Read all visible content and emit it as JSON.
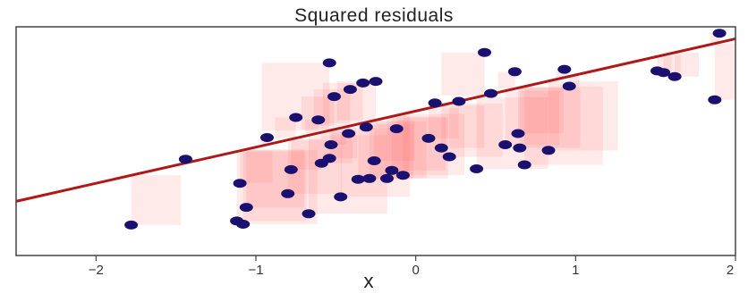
{
  "chart_data": {
    "type": "scatter",
    "title": "Squared residuals",
    "xlabel": "x",
    "ylabel": "",
    "xlim": [
      -2.5,
      2
    ],
    "ylim": [
      -1.45,
      1.4
    ],
    "xticks": [
      -2,
      -1,
      0,
      1,
      2
    ],
    "tick_labels": [
      "−2",
      "−1",
      "0",
      "1",
      "2"
    ],
    "grid": false,
    "fit_line": {
      "intercept": 0.35,
      "slope": 0.45,
      "color": "#b01818"
    },
    "point_color": "#1a1070",
    "square_color": "#ff6b6b",
    "x": [
      -1.78,
      -1.44,
      -1.1,
      -1.12,
      -1.08,
      -1.06,
      -0.93,
      -0.8,
      -0.78,
      -0.75,
      -0.67,
      -0.61,
      -0.59,
      -0.54,
      -0.54,
      -0.53,
      -0.51,
      -0.47,
      -0.42,
      -0.41,
      -0.36,
      -0.33,
      -0.31,
      -0.29,
      -0.26,
      -0.25,
      -0.18,
      -0.15,
      -0.12,
      -0.08,
      0.08,
      0.12,
      0.16,
      0.21,
      0.27,
      0.38,
      0.43,
      0.47,
      0.56,
      0.62,
      0.64,
      0.65,
      0.68,
      0.83,
      0.93,
      0.96,
      1.51,
      1.55,
      1.62,
      1.87,
      1.9
    ],
    "y": [
      -1.07,
      -0.25,
      -0.55,
      -1.02,
      -1.06,
      -0.85,
      0.02,
      -0.68,
      -0.38,
      0.27,
      -0.93,
      0.24,
      -0.3,
      0.95,
      -0.24,
      -0.07,
      0.53,
      -0.72,
      0.07,
      0.62,
      -0.5,
      0.7,
      0.15,
      -0.49,
      -0.27,
      0.72,
      -0.49,
      -0.39,
      0.13,
      -0.45,
      0.01,
      0.45,
      -0.11,
      -0.22,
      0.47,
      -0.37,
      1.08,
      0.57,
      -0.07,
      0.84,
      0.07,
      -0.11,
      -0.32,
      -0.14,
      0.87,
      0.66,
      0.85,
      0.83,
      0.78,
      0.49,
      1.32
    ]
  }
}
